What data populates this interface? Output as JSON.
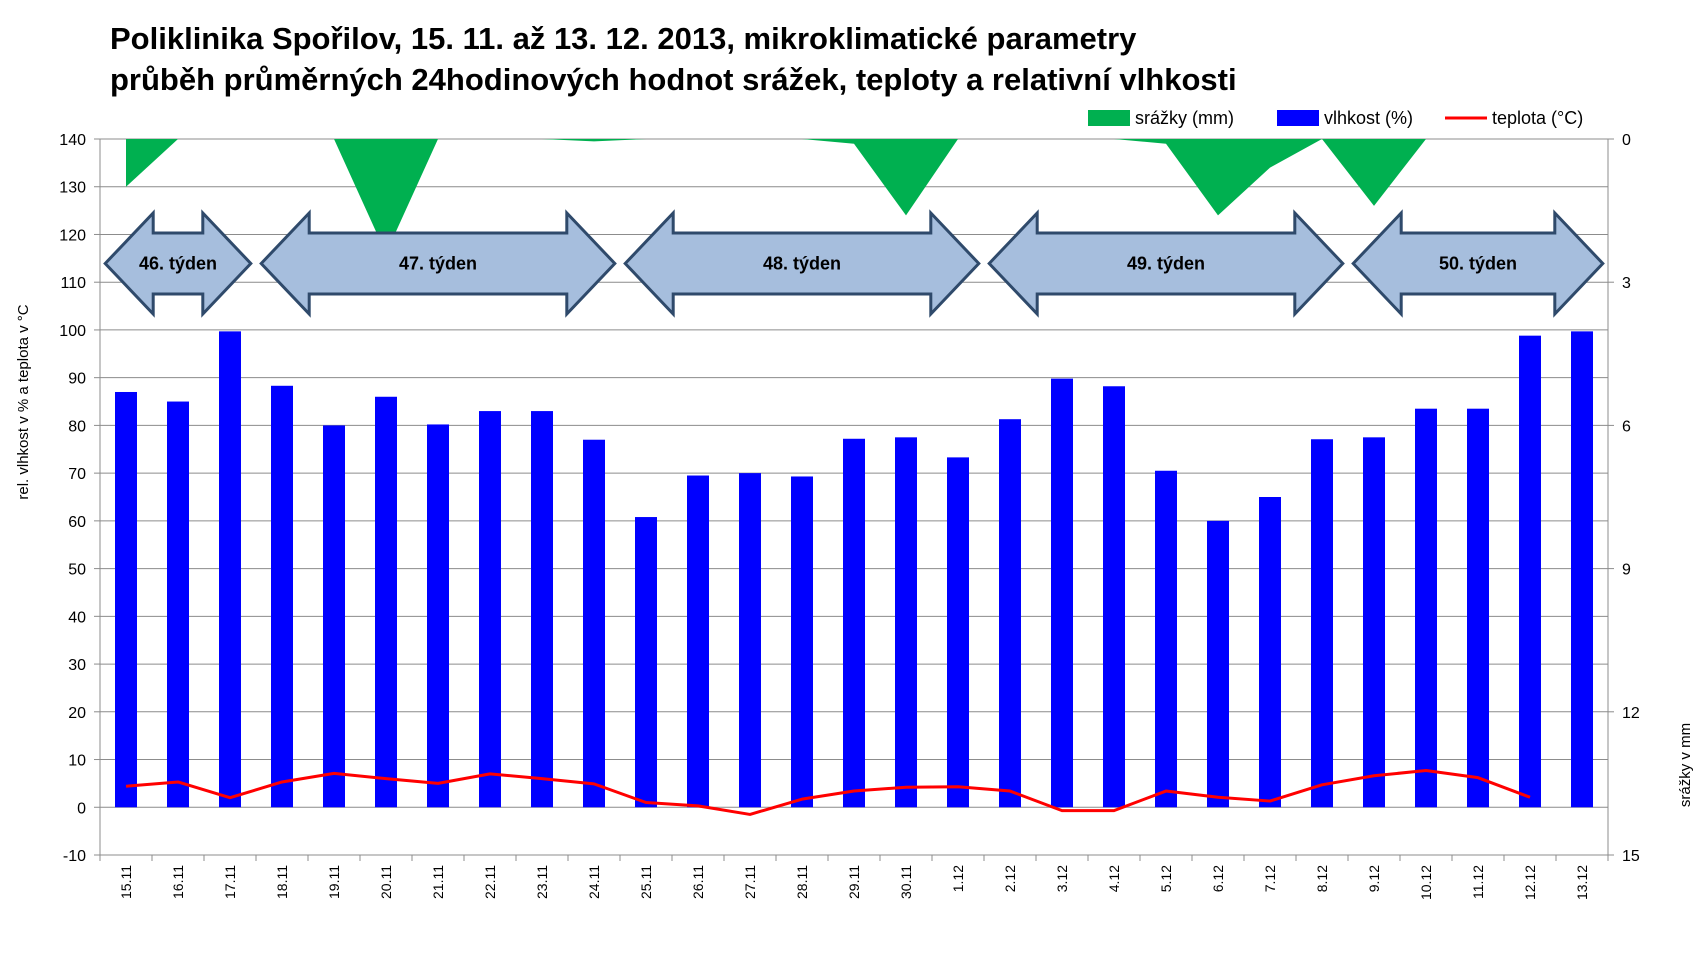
{
  "title": {
    "line1": "Poliklinika Spořilov, 15. 11. až 13. 12. 2013, mikroklimatické parametry",
    "line2": "průběh průměrných 24hodinových hodnot srážek, teploty a relativní vlhkosti"
  },
  "colors": {
    "precip": "#00b050",
    "humidity": "#0000ff",
    "temperature": "#ff0000",
    "arrow_fill": "#a6bedd",
    "arrow_stroke": "#2f4a6b"
  },
  "chart_data": {
    "type": "bar+line+area",
    "categories": [
      "15.11",
      "16.11",
      "17.11",
      "18.11",
      "19.11",
      "20.11",
      "21.11",
      "22.11",
      "23.11",
      "24.11",
      "25.11",
      "26.11",
      "27.11",
      "28.11",
      "29.11",
      "30.11",
      "1.12",
      "2.12",
      "3.12",
      "4.12",
      "5.12",
      "6.12",
      "7.12",
      "8.12",
      "9.12",
      "10.12",
      "11.12",
      "12.12",
      "13.12"
    ],
    "series": [
      {
        "name": "srážky (mm)",
        "kind": "area",
        "axis": "right",
        "values": [
          1.0,
          0.0,
          0.0,
          0.0,
          0.0,
          2.4,
          0.0,
          0.0,
          0.0,
          0.05,
          0.0,
          0.0,
          0.0,
          0.0,
          0.1,
          1.6,
          0.0,
          0.0,
          0.0,
          0.0,
          0.1,
          1.6,
          0.6,
          0.0,
          1.4,
          0.0,
          0.0,
          0.0,
          0.0
        ]
      },
      {
        "name": "vlhkost (%)",
        "kind": "bar",
        "axis": "left",
        "values": [
          87,
          85,
          99.7,
          88.3,
          80,
          86,
          80.2,
          83,
          83,
          77,
          60.8,
          69.5,
          70,
          69.3,
          77.2,
          77.5,
          73.3,
          81.3,
          89.8,
          88.2,
          70.5,
          60,
          65,
          77.1,
          77.5,
          83.5,
          83.5,
          98.8,
          99.7
        ]
      },
      {
        "name": "teplota (°C)",
        "kind": "line",
        "axis": "left",
        "values": [
          4.4,
          5.3,
          2.0,
          5.3,
          7.1,
          6.0,
          5.0,
          7.0,
          6.0,
          4.9,
          1.0,
          0.3,
          -1.5,
          1.7,
          3.4,
          4.2,
          4.3,
          3.4,
          -0.7,
          -0.7,
          3.4,
          2.1,
          1.3,
          4.7,
          6.6,
          7.7,
          6.2,
          2.1,
          null
        ]
      }
    ],
    "y_left": {
      "label": "rel. vlhkost v % a teplota v °C",
      "min": -10,
      "max": 140,
      "step": 10
    },
    "y_right": {
      "label": "srážky v mm",
      "min": 0,
      "max": 15,
      "inverted": true,
      "ticks": [
        0,
        3,
        6,
        9,
        12,
        15
      ]
    },
    "weeks": [
      {
        "label": "46. týden",
        "from": "15.11",
        "to": "17.11"
      },
      {
        "label": "47. týden",
        "from": "18.11",
        "to": "24.11"
      },
      {
        "label": "48. týden",
        "from": "25.11",
        "to": "1.12"
      },
      {
        "label": "49. týden",
        "from": "2.12",
        "to": "8.12"
      },
      {
        "label": "50. týden",
        "from": "9.12",
        "to": "13.12"
      }
    ],
    "legend_position": "top-right",
    "grid": true
  }
}
